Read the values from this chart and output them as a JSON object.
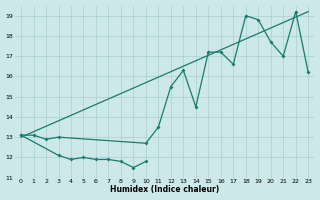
{
  "title": "",
  "xlabel": "Humidex (Indice chaleur)",
  "bg_color": "#cce8e8",
  "line_color": "#1a7a6e",
  "grid_color": "#aacfcf",
  "xlim": [
    -0.5,
    23.5
  ],
  "ylim": [
    11,
    19.5
  ],
  "xticks": [
    0,
    1,
    2,
    3,
    4,
    5,
    6,
    7,
    8,
    9,
    10,
    11,
    12,
    13,
    14,
    15,
    16,
    17,
    18,
    19,
    20,
    21,
    22,
    23
  ],
  "yticks": [
    11,
    12,
    13,
    14,
    15,
    16,
    17,
    18,
    19
  ],
  "line1_x": [
    0,
    1,
    2,
    3,
    10,
    11,
    12,
    13,
    14,
    15,
    16,
    17,
    18,
    19,
    20,
    21,
    22,
    23
  ],
  "line1_y": [
    13.1,
    13.1,
    12.9,
    13.0,
    12.7,
    13.5,
    15.5,
    16.3,
    14.5,
    17.2,
    17.2,
    16.6,
    19.0,
    18.8,
    17.7,
    17.0,
    19.2,
    16.2
  ],
  "line2_x": [
    0,
    3,
    4,
    5,
    6,
    7,
    8,
    9,
    10
  ],
  "line2_y": [
    13.1,
    12.1,
    11.9,
    12.0,
    11.9,
    11.9,
    11.8,
    11.5,
    11.8
  ],
  "line3_x": [
    0,
    23
  ],
  "line3_y": [
    13.0,
    19.2
  ]
}
